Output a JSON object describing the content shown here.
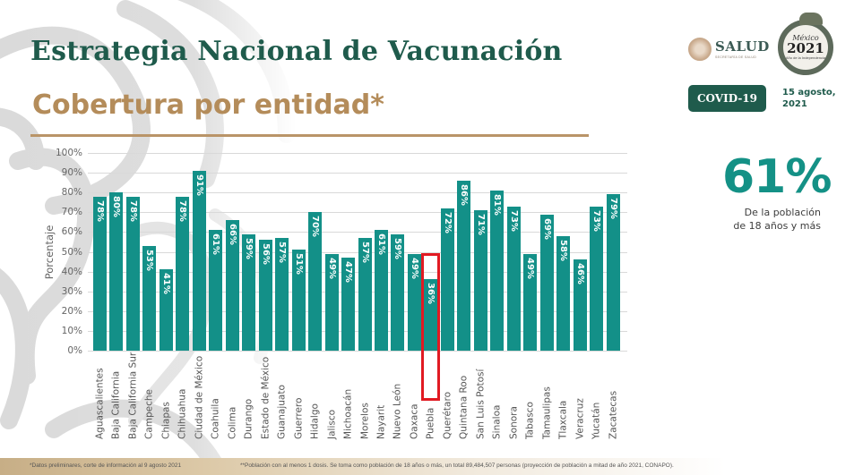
{
  "header": {
    "title": "Estrategia Nacional de Vacunación",
    "subtitle": "Cobertura por entidad*"
  },
  "logos": {
    "salud_word": "SALUD",
    "salud_sub": "SECRETARÍA DE SALUD",
    "emblem_top": "México",
    "emblem_year": "2021",
    "emblem_sub": "Año de la Independencia"
  },
  "badge": {
    "label": "COVID-19"
  },
  "date": "15 agosto,\n2021",
  "highlight_stat": {
    "value": "61%",
    "caption": "De la población\nde 18 años y más"
  },
  "colors": {
    "bar": "#139088",
    "title": "#1f5b4c",
    "subtitle": "#b48c5a",
    "highlight_box": "#e11a22",
    "big_stat": "#149186"
  },
  "chart_data": {
    "type": "bar",
    "title": "Cobertura por entidad*",
    "xlabel": "",
    "ylabel": "Porcentaje",
    "ylim": [
      0,
      100
    ],
    "yticks": [
      "0%",
      "10%",
      "20%",
      "30%",
      "40%",
      "50%",
      "60%",
      "70%",
      "80%",
      "90%",
      "100%"
    ],
    "grid": true,
    "legend": null,
    "highlighted_category": "Puebla",
    "categories": [
      "Aguascalientes",
      "Baja California",
      "Baja California Sur",
      "Campeche",
      "Chiapas",
      "Chihuahua",
      "Ciudad de México",
      "Coahuila",
      "Colima",
      "Durango",
      "Estado de México",
      "Guanajuato",
      "Guerrero",
      "Hidalgo",
      "Jalisco",
      "Michoacán",
      "Morelos",
      "Nayarit",
      "Nuevo León",
      "Oaxaca",
      "Puebla",
      "Querétaro",
      "Quintana Roo",
      "San Luis Potosí",
      "Sinaloa",
      "Sonora",
      "Tabasco",
      "Tamaulipas",
      "Tlaxcala",
      "Veracruz",
      "Yucatán",
      "Zacatecas"
    ],
    "values": [
      78,
      80,
      78,
      53,
      41,
      78,
      91,
      61,
      66,
      59,
      56,
      57,
      51,
      70,
      49,
      47,
      57,
      61,
      59,
      49,
      36,
      72,
      86,
      71,
      81,
      73,
      49,
      69,
      58,
      46,
      73,
      79
    ],
    "value_labels": [
      "78%",
      "80%",
      "78%",
      "53%",
      "41%",
      "78%",
      "91%",
      "61%",
      "66%",
      "59%",
      "56%",
      "57%",
      "51%",
      "70%",
      "49%",
      "47%",
      "57%",
      "61%",
      "59%",
      "49%",
      "36%",
      "72%",
      "86%",
      "71%",
      "81%",
      "73%",
      "49%",
      "69%",
      "58%",
      "46%",
      "73%",
      "79%"
    ]
  },
  "footer": {
    "note1": "*Datos preliminares, corte de información al 9 agosto  2021",
    "note2": "**Población con al menos 1 dosis. Se toma como población de 18 años o más, un total 89,484,507 personas (proyección de población a mitad de año 2021, CONAPO)."
  }
}
